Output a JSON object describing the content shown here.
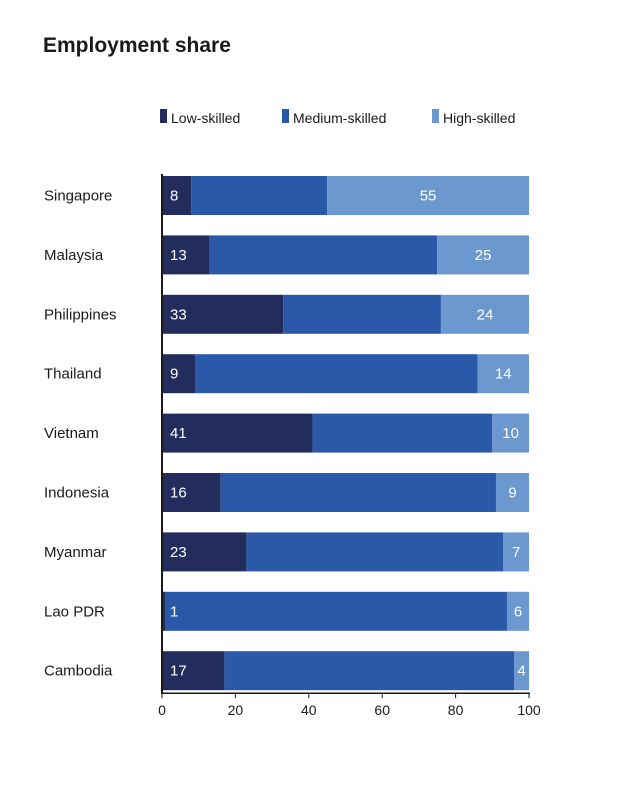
{
  "chart_data": {
    "type": "bar",
    "orientation": "horizontal",
    "stacked": true,
    "title": "Employment share",
    "xlabel": "",
    "ylabel": "",
    "xlim": [
      0,
      100
    ],
    "xticks": [
      0,
      20,
      40,
      60,
      80,
      100
    ],
    "grid": false,
    "legend_position": "top",
    "categories": [
      "Singapore",
      "Malaysia",
      "Philippines",
      "Thailand",
      "Vietnam",
      "Indonesia",
      "Myanmar",
      "Lao PDR",
      "Cambodia"
    ],
    "series": [
      {
        "name": "Low-skilled",
        "color": "#222d5e",
        "values": [
          8,
          13,
          33,
          9,
          41,
          16,
          23,
          1,
          17
        ]
      },
      {
        "name": "Medium-skilled",
        "color": "#2b59a9",
        "values": [
          37,
          62,
          43,
          77,
          49,
          75,
          70,
          93,
          79
        ]
      },
      {
        "name": "High-skilled",
        "color": "#6c98d0",
        "values": [
          55,
          25,
          24,
          14,
          10,
          9,
          7,
          6,
          4
        ]
      }
    ],
    "data_labels": {
      "Low-skilled": [
        "8",
        "13",
        "33",
        "9",
        "41",
        "16",
        "23",
        "1",
        "17"
      ],
      "High-skilled": [
        "55",
        "25",
        "24",
        "14",
        "10",
        "9",
        "7",
        "6",
        "4"
      ]
    }
  }
}
